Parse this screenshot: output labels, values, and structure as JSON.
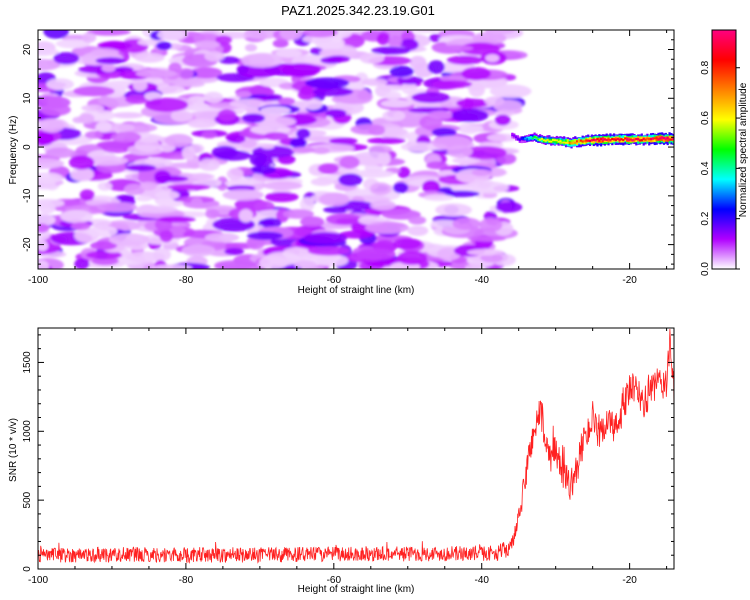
{
  "title": "PAZ1.2025.342.23.19.G01",
  "chart_data": [
    {
      "type": "heatmap",
      "name": "spectrogram",
      "xlabel": "Height of straight line (km)",
      "ylabel": "Frequency (Hz)",
      "xlim": [
        -100,
        -14
      ],
      "ylim": [
        -25,
        24
      ],
      "xticks": [
        "-100",
        "-80",
        "-60",
        "-40",
        "-20"
      ],
      "xtick_values": [
        -100,
        -80,
        -60,
        -40,
        -20
      ],
      "yticks": [
        "20",
        "10",
        "0",
        "-10",
        "-20"
      ],
      "ytick_values": [
        20,
        10,
        0,
        -10,
        -20
      ],
      "noise_region": {
        "x_from": -100,
        "x_to": -36,
        "amplitude_range": [
          0.02,
          0.18
        ]
      },
      "signal_track": {
        "x": [
          -36,
          -35,
          -34,
          -33,
          -32,
          -30,
          -28,
          -26,
          -24,
          -22,
          -20,
          -18,
          -16,
          -14
        ],
        "frequency": [
          2.5,
          1.5,
          1.8,
          2.0,
          1.5,
          1.2,
          0.9,
          1.3,
          1.5,
          1.6,
          1.6,
          1.5,
          1.8,
          1.6
        ],
        "amplitude": [
          0.1,
          0.15,
          0.35,
          0.45,
          0.55,
          0.6,
          0.7,
          0.8,
          0.95,
          0.85,
          0.9,
          0.8,
          0.95,
          0.9
        ]
      },
      "colorbar": {
        "label": "Normalized spectral amplitude",
        "range": [
          0.0,
          0.95
        ],
        "ticks": [
          "0.0",
          "0.2",
          "0.4",
          "0.6",
          "0.8"
        ],
        "tick_values": [
          0.0,
          0.2,
          0.4,
          0.6,
          0.8
        ],
        "colors": [
          "#ffffff",
          "#b000ff",
          "#0000ff",
          "#00ffff",
          "#00ff00",
          "#ffff00",
          "#ff8000",
          "#ff0000",
          "#ff0080"
        ]
      }
    },
    {
      "type": "line",
      "name": "snr",
      "xlabel": "Height of straight line (km)",
      "ylabel": "SNR (10 * v/v)",
      "xlim": [
        -100,
        -14
      ],
      "ylim": [
        0,
        1750
      ],
      "xticks": [
        "-100",
        "-80",
        "-60",
        "-40",
        "-20"
      ],
      "xtick_values": [
        -100,
        -80,
        -60,
        -40,
        -20
      ],
      "yticks": [
        "0",
        "500",
        "1000",
        "1500"
      ],
      "ytick_values": [
        0,
        500,
        1000,
        1500
      ],
      "color": "#ff2020",
      "series": [
        {
          "name": "SNR trend",
          "x": [
            -100,
            -90,
            -80,
            -70,
            -60,
            -50,
            -42,
            -38,
            -36,
            -35,
            -34,
            -33,
            -32,
            -31,
            -30,
            -29,
            -28,
            -27,
            -26,
            -25,
            -24,
            -23,
            -22,
            -21,
            -20,
            -19,
            -18,
            -17,
            -16,
            -15,
            -14.5,
            -14
          ],
          "values": [
            100,
            105,
            100,
            102,
            108,
            110,
            112,
            115,
            160,
            350,
            700,
            1000,
            1150,
            800,
            850,
            700,
            600,
            750,
            1000,
            1050,
            950,
            1100,
            1000,
            1150,
            1300,
            1300,
            1200,
            1300,
            1350,
            1350,
            1650,
            1200
          ],
          "noise_amplitude": [
            55,
            55,
            55,
            55,
            55,
            55,
            55,
            55,
            65,
            80,
            110,
            130,
            130,
            120,
            120,
            110,
            110,
            120,
            120,
            120,
            120,
            120,
            120,
            120,
            120,
            120,
            120,
            120,
            120,
            120,
            130,
            120
          ]
        }
      ]
    }
  ]
}
